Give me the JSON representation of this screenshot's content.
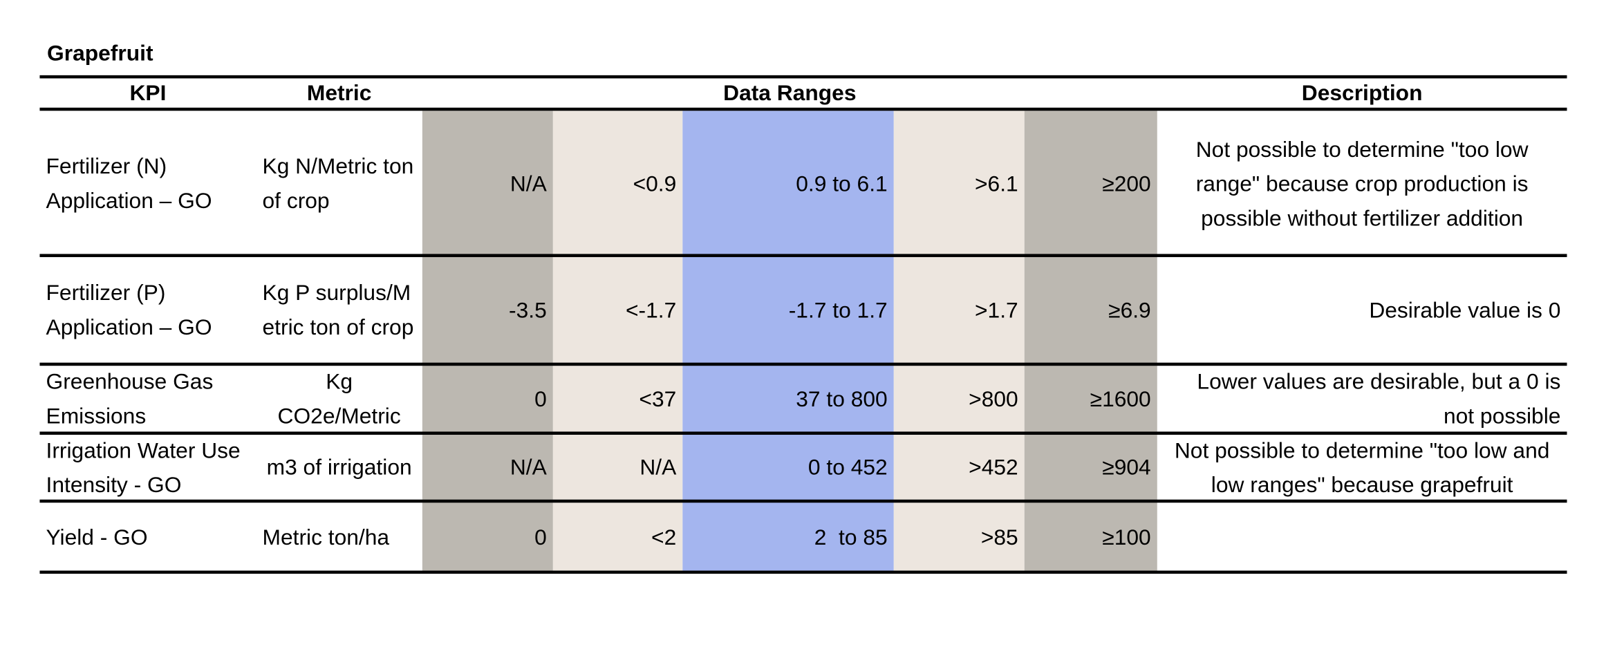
{
  "title": "Grapefruit",
  "table": {
    "headers": [
      "KPI",
      "Metric",
      "Data Ranges",
      "Description"
    ],
    "rows": [
      [
        "Fertilizer (N) Application – GO",
        "Kg N/Metric ton of crop",
        "N/A",
        "<0.9",
        "0.9 to 6.1",
        ">6.1",
        "≥200",
        "Not possible to determine \"too low range\" because crop production is possible without fertilizer addition"
      ],
      [
        "Fertilizer (P) Application – GO",
        "Kg P surplus/Metric ton of crop",
        "-3.5",
        "<-1.7",
        "-1.7 to 1.7",
        ">1.7",
        "≥6.9",
        "Desirable value is 0"
      ],
      [
        "Greenhouse Gas Emissions",
        "Kg CO2e/Metric",
        "0",
        "<37",
        "37 to 800",
        ">800",
        "≥1600",
        "Lower values are desirable, but a 0 is not possible"
      ],
      [
        "Irrigation Water Use Intensity - GO",
        "m3 of irrigation",
        "N/A",
        "N/A",
        "0 to 452",
        ">452",
        "≥904",
        "Not possible to determine \"too low and low ranges\" because grapefruit"
      ],
      [
        "Yield - GO",
        "Metric ton/ha",
        "0",
        "<2",
        "2  to 85",
        ">85",
        "≥100"
      ]
    ]
  }
}
